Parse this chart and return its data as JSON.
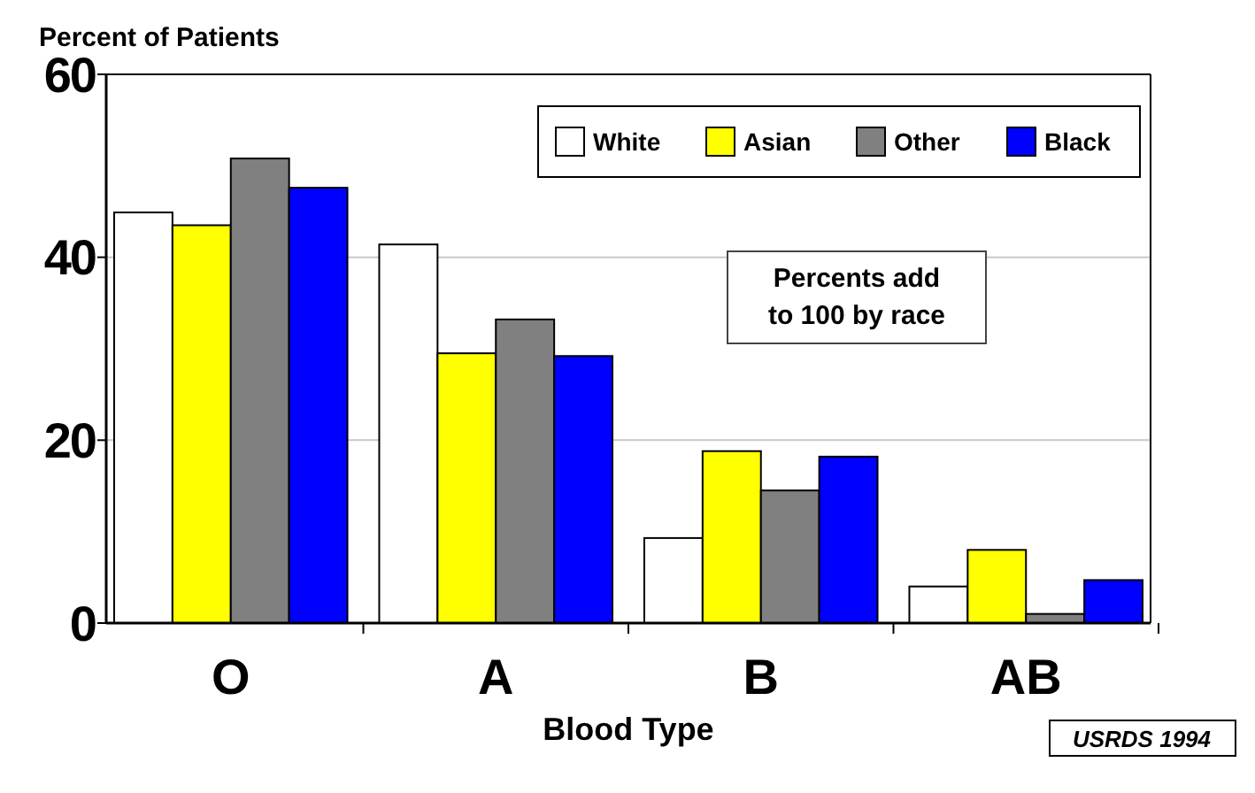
{
  "chart_data": {
    "type": "bar",
    "ylabel": "Percent of Patients",
    "xlabel": "Blood Type",
    "categories": [
      "O",
      "A",
      "B",
      "AB"
    ],
    "series": [
      {
        "name": "White",
        "color": "#ffffff",
        "values": [
          44.9,
          41.4,
          9.3,
          4.0
        ]
      },
      {
        "name": "Asian",
        "color": "#ffff00",
        "values": [
          43.5,
          29.5,
          18.8,
          8.0
        ]
      },
      {
        "name": "Other",
        "color": "#808080",
        "values": [
          50.8,
          33.2,
          14.5,
          1.0
        ]
      },
      {
        "name": "Black",
        "color": "#0000ff",
        "values": [
          47.6,
          29.2,
          18.2,
          4.7
        ]
      }
    ],
    "ylim": [
      0,
      60
    ],
    "yticks": [
      0,
      20,
      40,
      60
    ],
    "grid": "y",
    "legend": "top right",
    "annotations": [
      "Percents add to 100 by race",
      "USRDS 1994"
    ]
  }
}
